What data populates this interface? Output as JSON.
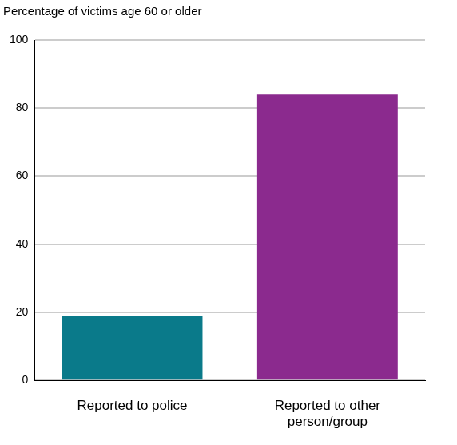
{
  "chart_data": {
    "type": "bar",
    "ylabel": "Percentage of victims age 60 or older",
    "categories": [
      "Reported to police",
      [
        "Reported to other",
        "person/group"
      ]
    ],
    "values": [
      19,
      84
    ],
    "colors": [
      "#0a7a8a",
      "#8b2a8e"
    ],
    "ylim": [
      0,
      100
    ],
    "yticks": [
      0,
      20,
      40,
      60,
      80,
      100
    ],
    "grid": true
  }
}
